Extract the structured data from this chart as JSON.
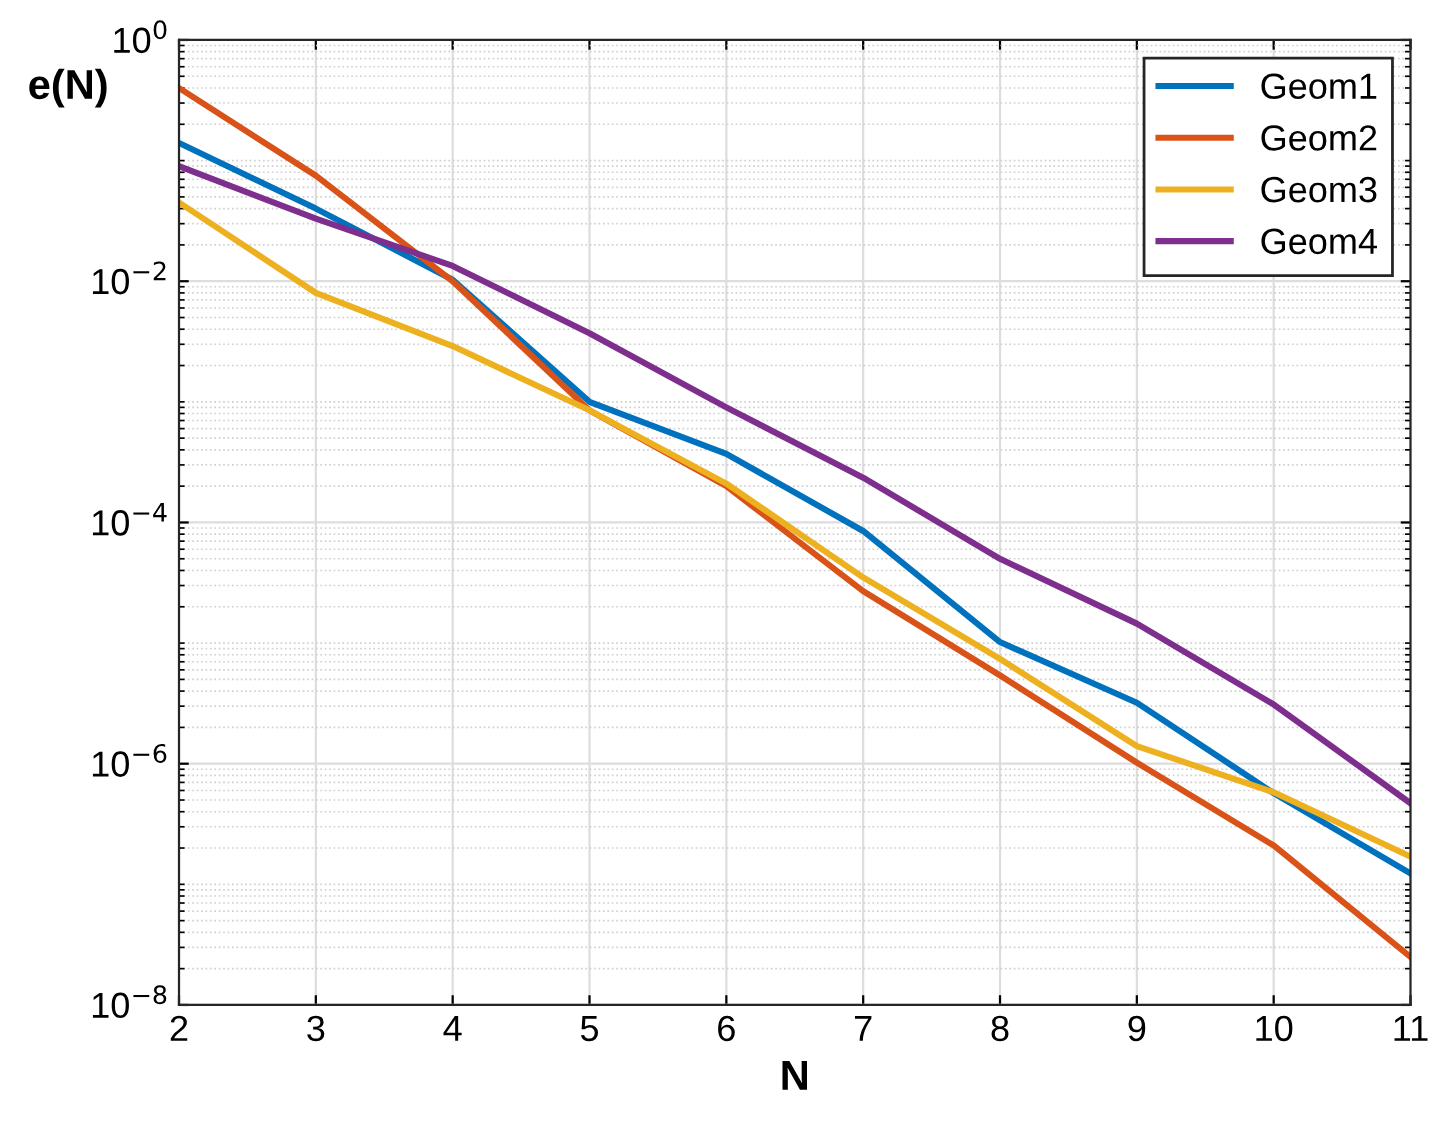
{
  "chart_data": {
    "type": "line",
    "xlabel": "N",
    "ylabel": "e(N)",
    "x": [
      2,
      3,
      4,
      5,
      6,
      7,
      8,
      9,
      10,
      11
    ],
    "series": [
      {
        "name": "Geom1",
        "color": "#0072bd",
        "values": [
          0.14,
          0.04,
          0.0103,
          0.001,
          0.00037,
          8.5e-05,
          1.02e-05,
          3.2e-06,
          5.7e-07,
          1.23e-07
        ]
      },
      {
        "name": "Geom2",
        "color": "#d95319",
        "values": [
          0.4,
          0.075,
          0.01,
          0.00085,
          0.0002,
          2.7e-05,
          5.4e-06,
          1.02e-06,
          2.1e-07,
          2.5e-08
        ]
      },
      {
        "name": "Geom3",
        "color": "#edb120",
        "values": [
          0.045,
          0.008,
          0.0029,
          0.00085,
          0.00021,
          3.5e-05,
          7.4e-06,
          1.4e-06,
          5.8e-07,
          1.7e-07
        ]
      },
      {
        "name": "Geom4",
        "color": "#7e2f8e",
        "values": [
          0.09,
          0.033,
          0.0134,
          0.0037,
          0.0009,
          0.000235,
          5e-05,
          1.45e-05,
          3.1e-06,
          4.7e-07
        ]
      }
    ],
    "log": "y",
    "xlim": [
      2,
      11
    ],
    "xticks": [
      2,
      3,
      4,
      5,
      6,
      7,
      8,
      9,
      10,
      11
    ],
    "ylim": [
      1e-08,
      1
    ],
    "yticks": [
      {
        "value": 1e-08,
        "label": "10$^{−8}$"
      },
      {
        "value": 1e-06,
        "label": "10$^{−6}$"
      },
      {
        "value": 0.0001,
        "label": "10$^{−4}$"
      },
      {
        "value": 0.01,
        "label": "10$^{−2}$"
      },
      {
        "value": 1,
        "label": "10$^{0}$"
      }
    ],
    "grid": true,
    "legend": "top right",
    "marker": "none",
    "line_style": "solid"
  }
}
